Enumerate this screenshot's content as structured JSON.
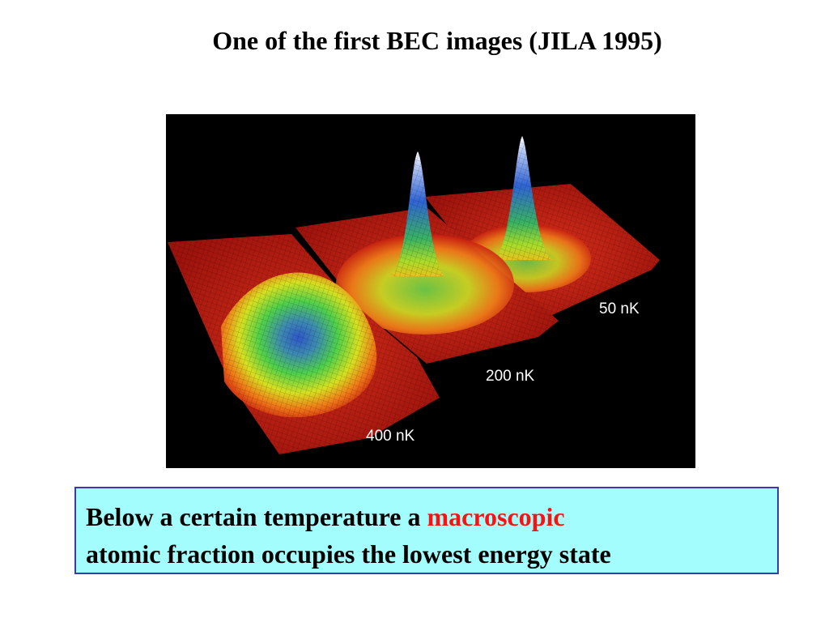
{
  "slide": {
    "title": "One of the first BEC images (JILA 1995)",
    "figure": {
      "labels": [
        "50 nK",
        "200 nK",
        "400 nK"
      ]
    },
    "caption": {
      "text_before": "Below a certain temperature a ",
      "highlight": "macroscopic",
      "text_after": "atomic fraction occupies the lowest energy state"
    },
    "colors": {
      "caption_background": "#a3fdfc",
      "caption_border": "#3a3aa8",
      "highlight": "#ff1010",
      "figure_background": "#000000"
    }
  }
}
